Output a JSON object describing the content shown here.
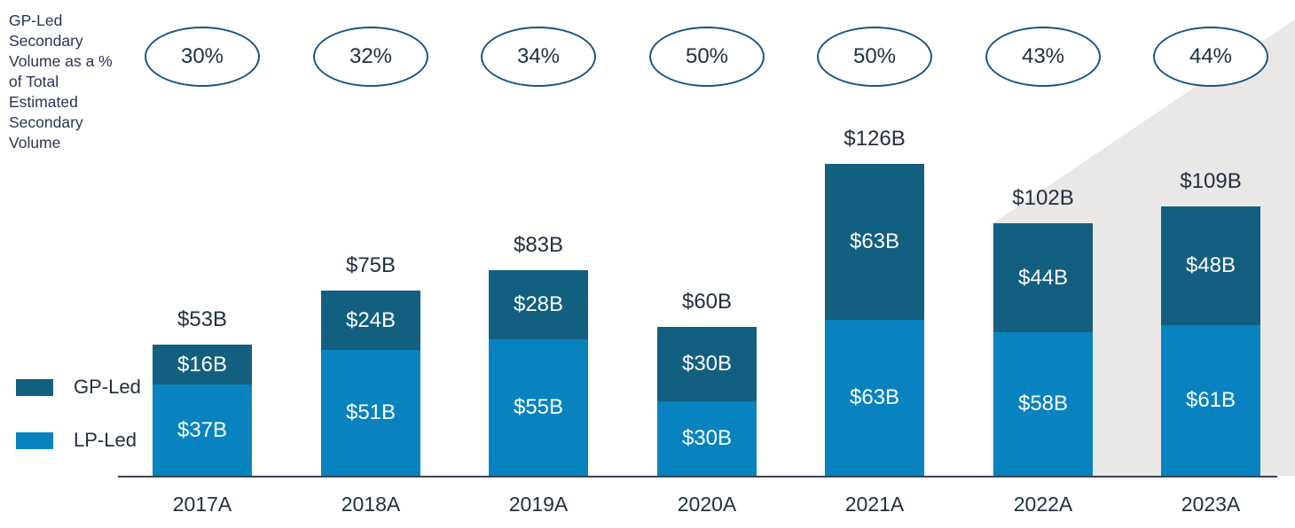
{
  "axis_note": {
    "text": "GP-Led\nSecondary\nVolume as a %\nof Total\nEstimated\nSecondary\nVolume"
  },
  "legend": {
    "items": [
      {
        "label": "GP-Led"
      },
      {
        "label": "LP-Led"
      }
    ]
  },
  "colors": {
    "gp_led": "#135f80",
    "lp_led": "#0883c0",
    "text": "#242e42",
    "oval_stroke": "#1d5480",
    "background_wedge": "#e9e8e6",
    "axis_line": "#3b4252",
    "bar_label_text": "#ffffff"
  },
  "chart_data": {
    "type": "bar",
    "stacked": true,
    "title": "",
    "xlabel": "",
    "ylabel": "GP-Led Secondary Volume as a % of Total Estimated Secondary Volume",
    "grid": false,
    "legend_position": "left",
    "categories": [
      "2017A",
      "2018A",
      "2019A",
      "2020A",
      "2021A",
      "2022A",
      "2023A"
    ],
    "series": [
      {
        "name": "GP-Led",
        "values": [
          16,
          24,
          28,
          30,
          63,
          44,
          48
        ],
        "labels": [
          "$16B",
          "$24B",
          "$28B",
          "$30B",
          "$63B",
          "$44B",
          "$48B"
        ]
      },
      {
        "name": "LP-Led",
        "values": [
          37,
          51,
          55,
          30,
          63,
          58,
          61
        ],
        "labels": [
          "$37B",
          "$51B",
          "$55B",
          "$30B",
          "$63B",
          "$58B",
          "$61B"
        ]
      }
    ],
    "totals": [
      53,
      75,
      83,
      60,
      126,
      102,
      109
    ],
    "total_labels": [
      "$53B",
      "$75B",
      "$83B",
      "$60B",
      "$126B",
      "$102B",
      "$109B"
    ],
    "gp_led_share_of_total": [
      "30%",
      "32%",
      "34%",
      "50%",
      "50%",
      "43%",
      "44%"
    ]
  }
}
